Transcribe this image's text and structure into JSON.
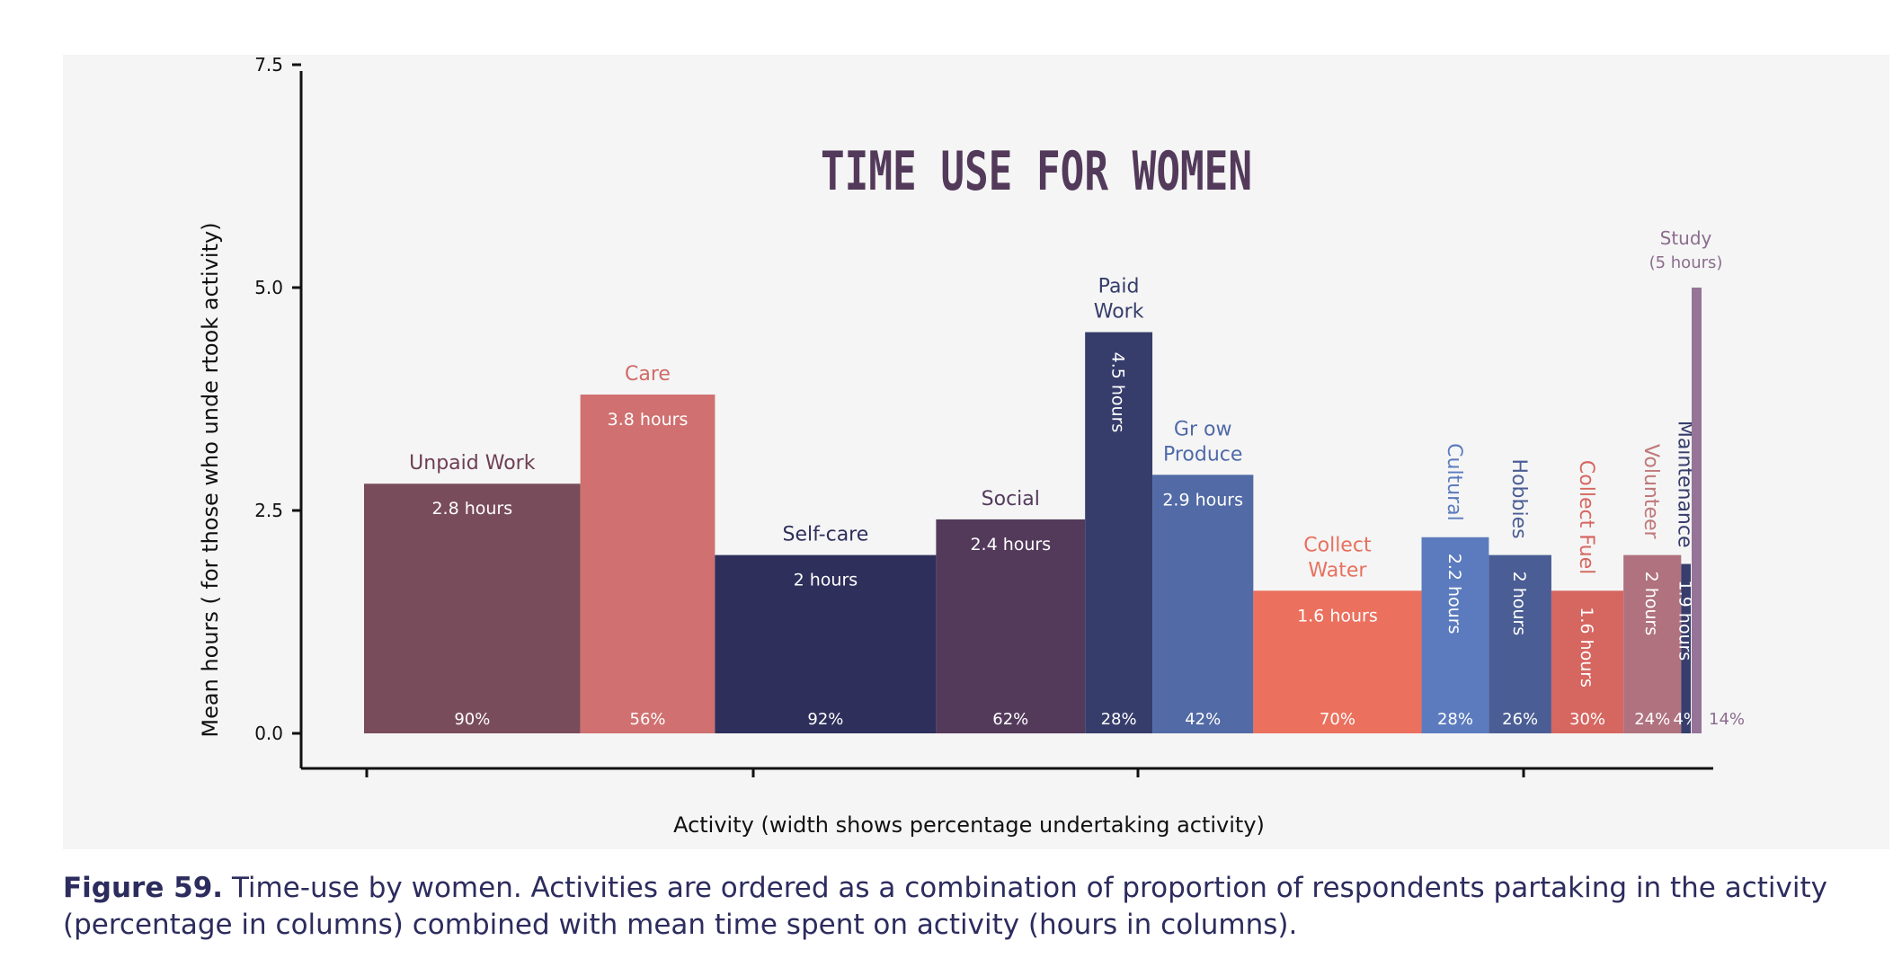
{
  "chart_data": {
    "type": "bar",
    "subtype": "variable-width (marimekko)",
    "title": "TIME USE FOR WOMEN",
    "xlabel": "Activity (width shows percentage undertaking activity)",
    "ylabel": "Mean hours ( for those who unde rtook activity)",
    "ylim": [
      0,
      7.5
    ],
    "y_ticks": [
      {
        "value": 0.0,
        "label": "0.0"
      },
      {
        "value": 2.5,
        "label": "2.5"
      },
      {
        "value": 5.0,
        "label": "5.0"
      },
      {
        "value": 7.5,
        "label": "7.5"
      }
    ],
    "grid": false,
    "categories": [
      {
        "name": "Unpaid Work",
        "name_lines": [
          "Unpaid Work"
        ],
        "hours": 2.8,
        "hours_label": "2.8 hours",
        "percent": 90,
        "percent_label": "90%",
        "color": "#794c5c",
        "label_color": "#6e3e52",
        "orientation": "horizontal"
      },
      {
        "name": "Care",
        "name_lines": [
          "Care"
        ],
        "hours": 3.8,
        "hours_label": "3.8 hours",
        "percent": 56,
        "percent_label": "56%",
        "color": "#d07070",
        "label_color": "#d06a66",
        "orientation": "horizontal"
      },
      {
        "name": "Self-care",
        "name_lines": [
          "Self-care"
        ],
        "hours": 2.0,
        "hours_label": "2 hours",
        "percent": 92,
        "percent_label": "92%",
        "color": "#2e2f5b",
        "label_color": "#2e2f5b",
        "orientation": "horizontal"
      },
      {
        "name": "Social",
        "name_lines": [
          "Social"
        ],
        "hours": 2.4,
        "hours_label": "2.4 hours",
        "percent": 62,
        "percent_label": "62%",
        "color": "#533a5b",
        "label_color": "#533a5b",
        "orientation": "horizontal"
      },
      {
        "name": "Paid Work",
        "name_lines": [
          "Paid",
          "Work"
        ],
        "hours": 4.5,
        "hours_label": "4.5 hours",
        "percent": 28,
        "percent_label": "28%",
        "color": "#363d6b",
        "label_color": "#363d6b",
        "orientation": "vertical-value"
      },
      {
        "name": "Grow Produce",
        "name_lines": [
          "Gr ow",
          "Produce"
        ],
        "hours": 2.9,
        "hours_label": "2.9 hours",
        "percent": 42,
        "percent_label": "42%",
        "color": "#526aa5",
        "label_color": "#4f6aa8",
        "orientation": "horizontal"
      },
      {
        "name": "Collect Water",
        "name_lines": [
          "Collect",
          "Water"
        ],
        "hours": 1.6,
        "hours_label": "1.6 hours",
        "percent": 70,
        "percent_label": "70%",
        "color": "#eb705e",
        "label_color": "#e8705e",
        "orientation": "horizontal"
      },
      {
        "name": "Cultural",
        "name_lines": [
          "Cultural"
        ],
        "hours": 2.2,
        "hours_label": "2.2 hours",
        "percent": 28,
        "percent_label": "28%",
        "color": "#5b7bbe",
        "label_color": "#5b7bbe",
        "orientation": "vertical"
      },
      {
        "name": "Hobbies",
        "name_lines": [
          "Hobbies"
        ],
        "hours": 2.0,
        "hours_label": "2 hours",
        "percent": 26,
        "percent_label": "26%",
        "color": "#4a5d94",
        "label_color": "#4a5d94",
        "orientation": "vertical"
      },
      {
        "name": "Collect Fuel",
        "name_lines": [
          "Collect Fuel"
        ],
        "hours": 1.6,
        "hours_label": "1.6 hours",
        "percent": 30,
        "percent_label": "30%",
        "color": "#d66660",
        "label_color": "#d66660",
        "orientation": "vertical"
      },
      {
        "name": "Volunteer",
        "name_lines": [
          "Volunteer"
        ],
        "hours": 2.0,
        "hours_label": "2 hours",
        "percent": 24,
        "percent_label": "24%",
        "color": "#b0727f",
        "label_color": "#c0787a",
        "orientation": "vertical"
      },
      {
        "name": "Maintenance",
        "name_lines": [
          "Maintenance"
        ],
        "hours": 1.9,
        "hours_label": "1.9 hours",
        "percent": 4,
        "percent_label": "4%",
        "color": "#373d6c",
        "label_color": "#373d6c",
        "orientation": "vertical"
      },
      {
        "name": "Study",
        "name_lines": [
          "Study",
          "(5 hours)"
        ],
        "hours": 5.0,
        "hours_label": "(5 hours)",
        "percent": 14,
        "percent_label": "14%",
        "color": "#967497",
        "label_color": "#8b6c8e",
        "orientation": "outside"
      }
    ],
    "colors": {
      "title": "#533a5b",
      "axis": "#111111",
      "panel_background": "#f5f5f5",
      "bar_text": "#ffffff"
    }
  },
  "caption": {
    "label": "Figure 59.",
    "text": " Time-use by women. Activities are ordered as a combination of proportion of respondents partaking in the activity (percentage in columns) combined with mean time spent on activity (hours in columns)."
  }
}
